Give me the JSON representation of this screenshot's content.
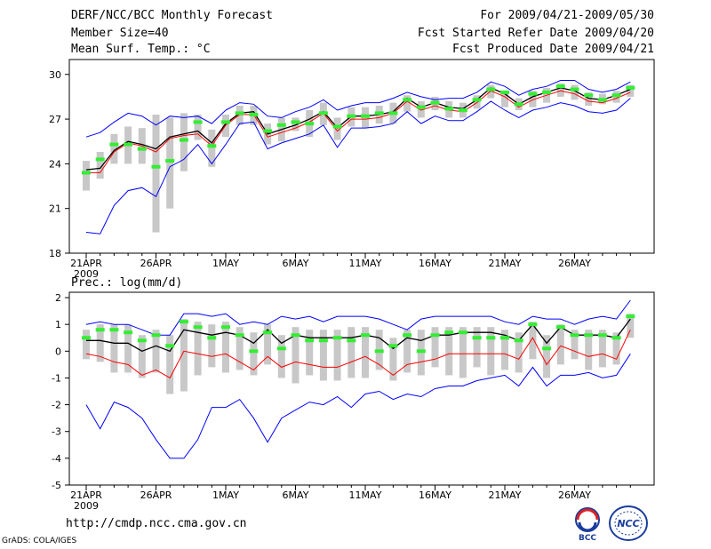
{
  "header": {
    "title": "DERF/NCC/BCC Monthly Forecast",
    "member": "Member Size=40",
    "variable": "Mean Surf. Temp.: °C",
    "period": "For 2009/04/21-2009/05/30",
    "started": "Fcst Started Refer Date 2009/04/20",
    "produced": "Fcst Produced Date 2009/04/21"
  },
  "footer": {
    "url": "http://cmdp.ncc.cma.gov.cn",
    "grads": "GrADS: COLA/IGES",
    "logo_bcc": "BCC",
    "logo_ncc": "NCC"
  },
  "colors": {
    "max_min": "#0000ff",
    "mean": "#000000",
    "median": "#ff0000",
    "obs": "#33ee33",
    "spread": "#c8c8c8"
  },
  "chart_data": [
    {
      "type": "line",
      "title": "Mean Surf. Temp.: °C",
      "x_ticks": [
        "21APR",
        "26APR",
        "1MAY",
        "6MAY",
        "11MAY",
        "16MAY",
        "21MAY",
        "26MAY"
      ],
      "x_year": "2009",
      "ylim": [
        18,
        31
      ],
      "y_ticks": [
        18,
        21,
        24,
        27,
        30
      ],
      "days": 40,
      "series": [
        {
          "name": "max",
          "values": [
            25.8,
            26.1,
            26.8,
            27.4,
            27.2,
            26.6,
            27.2,
            27.1,
            27.2,
            26.7,
            27.6,
            28.1,
            28.0,
            27.2,
            27.1,
            27.5,
            27.8,
            28.3,
            27.6,
            27.9,
            28.1,
            28.1,
            28.4,
            28.8,
            28.5,
            28.3,
            28.4,
            28.4,
            28.8,
            29.5,
            29.2,
            28.6,
            29.0,
            29.2,
            29.6,
            29.6,
            29.0,
            28.8,
            29.0,
            29.5
          ]
        },
        {
          "name": "mean",
          "values": [
            23.6,
            23.7,
            24.9,
            25.5,
            25.3,
            25.0,
            25.8,
            26.0,
            26.2,
            25.4,
            26.7,
            27.4,
            27.5,
            26.0,
            26.3,
            26.6,
            27.0,
            27.5,
            26.4,
            27.2,
            27.2,
            27.3,
            27.5,
            28.4,
            27.8,
            28.1,
            27.8,
            27.7,
            28.3,
            29.1,
            28.7,
            28.0,
            28.5,
            28.8,
            29.1,
            28.9,
            28.4,
            28.3,
            28.6,
            29.0
          ]
        },
        {
          "name": "median",
          "values": [
            23.4,
            23.4,
            24.8,
            25.4,
            25.2,
            24.8,
            25.7,
            25.9,
            26.0,
            25.2,
            26.6,
            27.3,
            27.3,
            25.8,
            26.1,
            26.4,
            26.8,
            27.4,
            26.2,
            27.0,
            27.0,
            27.1,
            27.4,
            28.2,
            27.6,
            27.9,
            27.6,
            27.5,
            28.1,
            28.9,
            28.5,
            27.8,
            28.3,
            28.6,
            28.9,
            28.7,
            28.2,
            28.1,
            28.4,
            28.8
          ]
        },
        {
          "name": "min",
          "values": [
            19.4,
            19.3,
            21.2,
            22.2,
            22.4,
            21.8,
            23.8,
            24.3,
            25.3,
            24.0,
            25.3,
            26.7,
            26.8,
            25.0,
            25.4,
            25.7,
            26.0,
            26.6,
            25.1,
            26.4,
            26.4,
            26.5,
            26.7,
            27.5,
            26.7,
            27.2,
            26.9,
            26.9,
            27.5,
            28.2,
            27.6,
            27.1,
            27.6,
            27.8,
            28.1,
            27.9,
            27.5,
            27.4,
            27.6,
            28.4
          ]
        },
        {
          "name": "obs",
          "values": [
            23.4,
            24.3,
            25.3,
            25.3,
            25.0,
            23.8,
            24.2,
            25.6,
            26.8,
            25.2,
            26.8,
            27.4,
            27.3,
            26.2,
            26.6,
            26.8,
            26.7,
            27.4,
            26.5,
            27.2,
            27.2,
            27.4,
            27.4,
            28.3,
            27.8,
            28.1,
            27.7,
            27.6,
            28.3,
            29.0,
            28.8,
            28.0,
            28.7,
            28.8,
            29.2,
            29.0,
            28.6,
            28.3,
            28.6,
            29.1
          ]
        },
        {
          "name": "spread_low",
          "values": [
            22.2,
            23.0,
            24.0,
            24.0,
            24.0,
            19.4,
            21.0,
            23.5,
            25.6,
            23.8,
            25.8,
            26.6,
            26.6,
            25.3,
            25.5,
            26.2,
            25.8,
            26.6,
            25.6,
            26.5,
            26.4,
            26.7,
            26.7,
            27.5,
            27.1,
            27.6,
            27.1,
            27.1,
            27.7,
            28.4,
            27.8,
            27.6,
            27.8,
            28.1,
            28.5,
            28.3,
            27.9,
            28.0,
            28.1,
            28.5
          ]
        },
        {
          "name": "spread_high",
          "values": [
            24.2,
            24.8,
            26.0,
            26.5,
            26.4,
            27.3,
            27.1,
            27.4,
            27.3,
            26.3,
            27.3,
            27.9,
            27.9,
            26.7,
            27.1,
            27.1,
            27.6,
            28.1,
            27.1,
            27.8,
            27.8,
            27.9,
            28.1,
            28.6,
            28.2,
            28.5,
            28.2,
            28.1,
            28.6,
            29.3,
            28.9,
            28.4,
            28.9,
            29.1,
            29.4,
            29.3,
            28.8,
            28.7,
            28.9,
            29.3
          ]
        }
      ]
    },
    {
      "type": "line",
      "title": "Prec.: log(mm/d)",
      "x_ticks": [
        "21APR",
        "26APR",
        "1MAY",
        "6MAY",
        "11MAY",
        "16MAY",
        "21MAY",
        "26MAY"
      ],
      "x_year": "2009",
      "ylim": [
        -5,
        2.2
      ],
      "y_ticks": [
        -5,
        -4,
        -3,
        -2,
        -1,
        0,
        1,
        2
      ],
      "days": 40,
      "series": [
        {
          "name": "max",
          "values": [
            1.0,
            1.1,
            1.0,
            1.0,
            0.8,
            0.6,
            0.6,
            1.4,
            1.4,
            1.3,
            1.4,
            1.0,
            1.1,
            1.0,
            1.3,
            1.2,
            1.3,
            1.1,
            1.3,
            1.3,
            1.3,
            1.2,
            1.0,
            0.8,
            1.2,
            1.3,
            1.3,
            1.3,
            1.3,
            1.3,
            1.1,
            1.0,
            1.3,
            1.2,
            1.2,
            1.0,
            1.2,
            1.3,
            1.2,
            1.9
          ]
        },
        {
          "name": "mean",
          "values": [
            0.4,
            0.4,
            0.3,
            0.3,
            0.0,
            0.2,
            0.0,
            0.8,
            0.7,
            0.6,
            0.7,
            0.6,
            0.3,
            0.8,
            0.3,
            0.6,
            0.5,
            0.5,
            0.5,
            0.5,
            0.6,
            0.5,
            0.1,
            0.5,
            0.4,
            0.6,
            0.6,
            0.7,
            0.7,
            0.7,
            0.6,
            0.4,
            1.0,
            0.3,
            0.9,
            0.6,
            0.6,
            0.6,
            0.5,
            1.2
          ]
        },
        {
          "name": "median",
          "values": [
            -0.1,
            -0.2,
            -0.4,
            -0.5,
            -0.9,
            -0.7,
            -1.0,
            0.0,
            -0.1,
            -0.2,
            -0.1,
            -0.4,
            -0.7,
            -0.2,
            -0.6,
            -0.4,
            -0.5,
            -0.6,
            -0.6,
            -0.4,
            -0.2,
            -0.5,
            -0.9,
            -0.5,
            -0.4,
            -0.3,
            -0.1,
            -0.1,
            -0.1,
            -0.1,
            -0.1,
            -0.3,
            0.5,
            -0.5,
            0.2,
            0.0,
            -0.2,
            -0.1,
            -0.3,
            0.8
          ]
        },
        {
          "name": "min",
          "values": [
            -2.0,
            -2.9,
            -1.9,
            -2.1,
            -2.5,
            -3.3,
            -4.0,
            -4.0,
            -3.3,
            -2.1,
            -2.1,
            -1.8,
            -2.5,
            -3.4,
            -2.5,
            -2.2,
            -1.9,
            -2.0,
            -1.7,
            -2.1,
            -1.6,
            -1.5,
            -1.8,
            -1.6,
            -1.7,
            -1.4,
            -1.3,
            -1.3,
            -1.1,
            -1.0,
            -0.9,
            -1.3,
            -0.6,
            -1.3,
            -0.9,
            -0.9,
            -0.8,
            -1.0,
            -0.9,
            -0.1
          ]
        },
        {
          "name": "obs",
          "values": [
            0.5,
            0.8,
            0.8,
            0.7,
            0.4,
            0.6,
            0.2,
            1.1,
            0.9,
            0.5,
            0.9,
            0.6,
            0.0,
            0.7,
            0.1,
            0.6,
            0.4,
            0.4,
            0.5,
            0.4,
            0.6,
            0.0,
            0.2,
            0.6,
            0.0,
            0.6,
            0.7,
            0.7,
            0.5,
            0.5,
            0.5,
            0.4,
            1.0,
            0.1,
            0.9,
            0.6,
            0.6,
            0.6,
            0.5,
            1.3
          ]
        },
        {
          "name": "spread_low",
          "values": [
            -0.3,
            -0.4,
            -0.8,
            -0.8,
            -1.0,
            -0.8,
            -1.6,
            -1.5,
            -0.9,
            -0.6,
            -0.8,
            -0.7,
            -0.9,
            -0.5,
            -1.0,
            -1.2,
            -0.9,
            -1.1,
            -1.1,
            -1.0,
            -1.0,
            -0.7,
            -1.1,
            -0.8,
            -0.9,
            -0.6,
            -0.9,
            -1.0,
            -0.6,
            -0.9,
            -0.7,
            -0.8,
            -0.3,
            -1.0,
            -0.5,
            -0.3,
            -0.7,
            -0.6,
            -0.5,
            0.5
          ]
        },
        {
          "name": "spread_high",
          "values": [
            0.8,
            1.0,
            1.0,
            1.0,
            0.6,
            0.8,
            0.6,
            1.2,
            1.1,
            1.0,
            1.1,
            0.9,
            0.7,
            1.0,
            0.6,
            0.9,
            0.8,
            0.8,
            0.8,
            0.9,
            0.9,
            0.8,
            0.5,
            0.8,
            0.8,
            0.9,
            0.9,
            0.9,
            0.9,
            0.9,
            0.8,
            0.7,
            1.1,
            0.6,
            1.0,
            0.8,
            0.8,
            0.8,
            0.7,
            1.4
          ]
        }
      ]
    }
  ]
}
